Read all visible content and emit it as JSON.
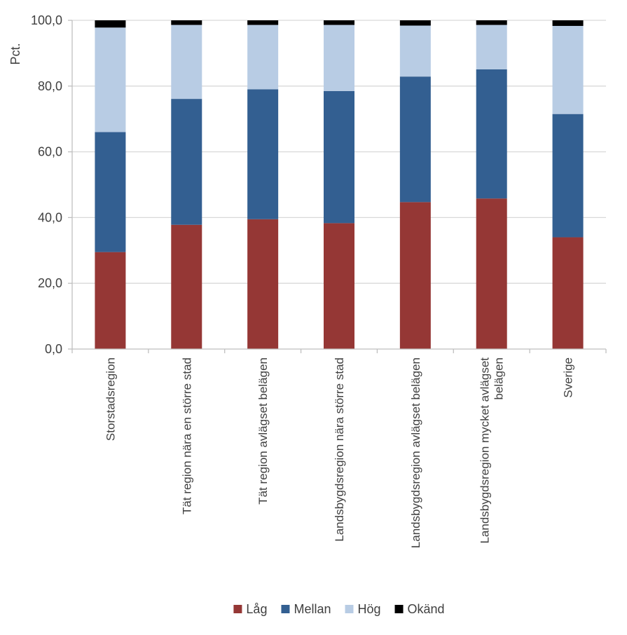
{
  "chart_data": {
    "type": "bar",
    "stacked": true,
    "ylabel": "Pct.",
    "ylim": [
      0,
      100
    ],
    "yticks": [
      "0,0",
      "20,0",
      "40,0",
      "60,0",
      "80,0",
      "100,0"
    ],
    "grid": true,
    "legend_position": "bottom",
    "categories": [
      [
        "Storstadsregion"
      ],
      [
        "Tät region nära en större stad"
      ],
      [
        "Tät region avlägset belägen"
      ],
      [
        "Landsbygdsregion nära större stad"
      ],
      [
        "Landsbygdsregion avlägset belägen"
      ],
      [
        "Landsbygdsregion mycket avlägset",
        "belägen"
      ],
      [
        "Sverige"
      ]
    ],
    "series": [
      {
        "name": "Låg",
        "color": "#953735",
        "values": [
          29.5,
          37.8,
          39.5,
          38.3,
          44.7,
          45.8,
          34.0
        ]
      },
      {
        "name": "Mellan",
        "color": "#335f91",
        "values": [
          36.5,
          38.3,
          39.5,
          40.2,
          38.2,
          39.3,
          37.5
        ]
      },
      {
        "name": "Hög",
        "color": "#b8cce4",
        "values": [
          31.8,
          22.5,
          19.6,
          20.1,
          15.5,
          13.5,
          26.8
        ]
      },
      {
        "name": "Okänd",
        "color": "#000000",
        "values": [
          2.2,
          1.4,
          1.4,
          1.4,
          1.6,
          1.4,
          1.7
        ]
      }
    ]
  }
}
